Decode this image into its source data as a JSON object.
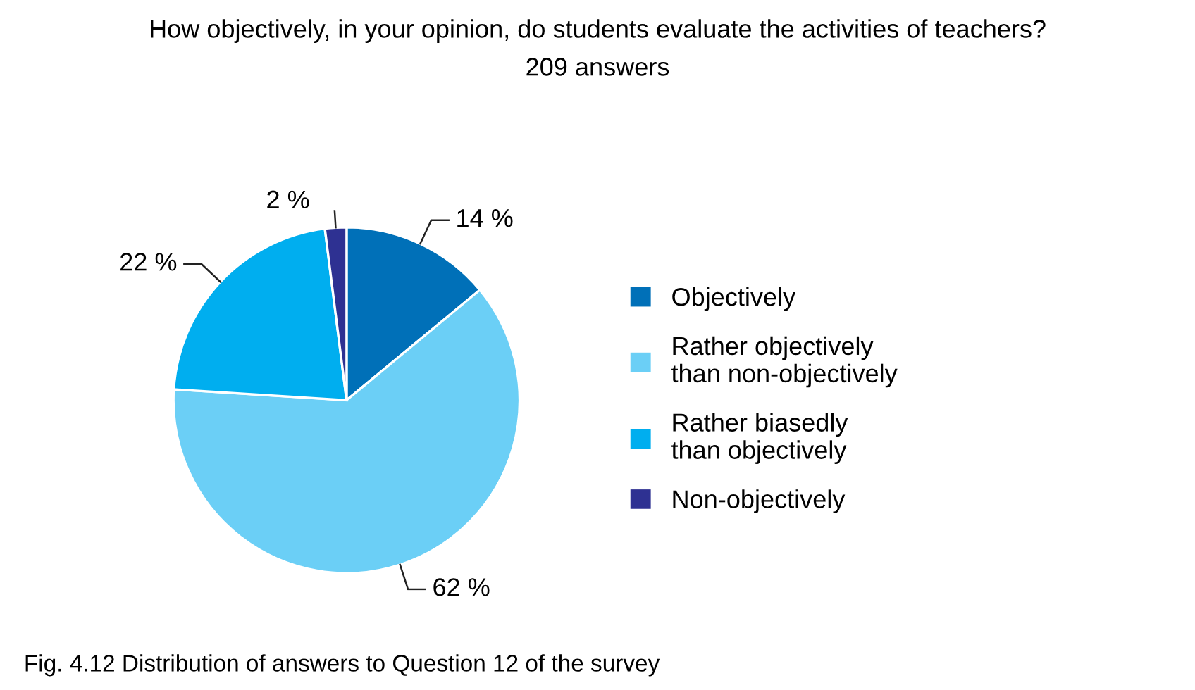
{
  "chart_data": {
    "type": "pie",
    "title": "How objectively, in your opinion, do students evaluate the activities of teachers?",
    "subtitle": "209 answers",
    "categories": [
      "Objectively",
      "Rather objectively\nthan non-objectively",
      "Rather biasedly\nthan objectively",
      "Non-objectively"
    ],
    "values": [
      14,
      62,
      22,
      2
    ],
    "colors": [
      "#0070b8",
      "#6bcff6",
      "#00aeef",
      "#2e3192"
    ],
    "value_labels": [
      "14 %",
      "62 %",
      "22 %",
      "2 %"
    ],
    "legend": "right",
    "annotations": [
      "Fig. 4.12 Distribution of answers to Question 12 of the survey"
    ]
  }
}
